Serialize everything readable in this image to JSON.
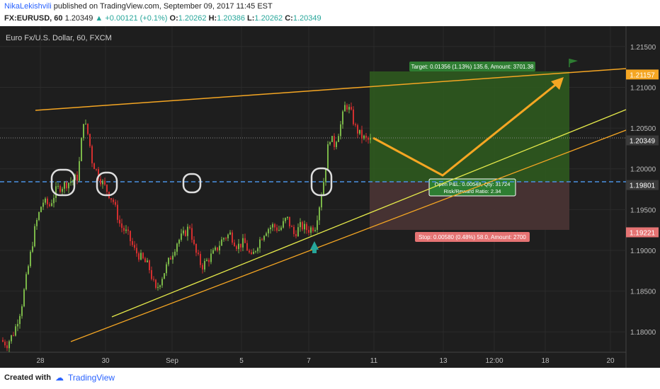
{
  "header": {
    "author": "NikaLekishvili",
    "published_text": "published on TradingView.com, September 09, 2017 11:45 EST",
    "symbol": "FX:EURUSD, 60",
    "last": "1.20349",
    "change": "+0.00121 (+0.1%)",
    "o_label": "O:",
    "o_value": "1.20262",
    "h_label": "H:",
    "h_value": "1.20386",
    "l_label": "L:",
    "l_value": "1.20262",
    "c_label": "C:",
    "c_value": "1.20349"
  },
  "footer": {
    "created_with": "Created with",
    "brand": "TradingView"
  },
  "colors": {
    "background": "#1e1e1e",
    "up_candle": "#7ab648",
    "down_candle": "#d32f2f",
    "orange": "#f5a623",
    "yellow": "#e4e84a",
    "blue_dashed": "#4a90e2",
    "target_zone": "#2f5d1f",
    "stop_zone": "#4a3434"
  },
  "chart_data": {
    "type": "candlestick",
    "title": "Euro Fx/U.S. Dollar, 60, FXCM",
    "y_ticks": [
      "1.21500",
      "1.21000",
      "1.20500",
      "1.20000",
      "1.19500",
      "1.19000",
      "1.18500",
      "1.18000"
    ],
    "ylim": [
      1.1775,
      1.2175
    ],
    "x_ticks": [
      "28",
      "30",
      "Sep",
      "5",
      "7",
      "11",
      "13",
      "12:00",
      "18",
      "20"
    ],
    "price_labels": [
      {
        "value": 1.21157,
        "text": "1.21157",
        "color": "#f5a623"
      },
      {
        "value": 1.20349,
        "text": "1.20349",
        "color": "#3a3a3a"
      },
      {
        "value": 1.19801,
        "text": "1.19801",
        "color": "#3a3a3a"
      },
      {
        "value": 1.19221,
        "text": "1.19221",
        "color": "#e57373"
      }
    ],
    "price_path": [
      [
        0,
        1.179
      ],
      [
        10,
        1.1785
      ],
      [
        20,
        1.18
      ],
      [
        30,
        1.183
      ],
      [
        40,
        1.188
      ],
      [
        50,
        1.193
      ],
      [
        60,
        1.196
      ],
      [
        70,
        1.1955
      ],
      [
        80,
        1.1975
      ],
      [
        90,
        1.198
      ],
      [
        100,
        1.1985
      ],
      [
        110,
        1.199
      ],
      [
        118,
        1.206
      ],
      [
        125,
        1.204
      ],
      [
        130,
        1.201
      ],
      [
        140,
        1.199
      ],
      [
        150,
        1.1975
      ],
      [
        160,
        1.196
      ],
      [
        170,
        1.193
      ],
      [
        180,
        1.192
      ],
      [
        190,
        1.19
      ],
      [
        200,
        1.189
      ],
      [
        210,
        1.188
      ],
      [
        220,
        1.185
      ],
      [
        230,
        1.187
      ],
      [
        240,
        1.189
      ],
      [
        250,
        1.191
      ],
      [
        260,
        1.192
      ],
      [
        268,
        1.193
      ],
      [
        275,
        1.19
      ],
      [
        285,
        1.188
      ],
      [
        295,
        1.189
      ],
      [
        305,
        1.19
      ],
      [
        315,
        1.1915
      ],
      [
        325,
        1.192
      ],
      [
        335,
        1.1905
      ],
      [
        345,
        1.191
      ],
      [
        355,
        1.189
      ],
      [
        365,
        1.191
      ],
      [
        375,
        1.1925
      ],
      [
        385,
        1.193
      ],
      [
        395,
        1.1925
      ],
      [
        405,
        1.194
      ],
      [
        415,
        1.192
      ],
      [
        425,
        1.193
      ],
      [
        435,
        1.1925
      ],
      [
        445,
        1.193
      ],
      [
        452,
        1.196
      ],
      [
        458,
        1.199
      ],
      [
        465,
        1.204
      ],
      [
        472,
        1.203
      ],
      [
        480,
        1.205
      ],
      [
        488,
        1.208
      ],
      [
        495,
        1.207
      ],
      [
        502,
        1.205
      ],
      [
        510,
        1.204
      ],
      [
        518,
        1.2035
      ],
      [
        524,
        1.2035
      ]
    ],
    "tool_labels": {
      "target": "Target: 0.01356 (1.13%) 135.6, Amount: 3701.38",
      "stop": "Stop: 0.00580 (0.48%) 58.0, Amount: 2700",
      "pnl": "Open P&L: 0.00548, Qty: 31724",
      "rr": "Risk/Reward Ratio: 2.34"
    }
  }
}
